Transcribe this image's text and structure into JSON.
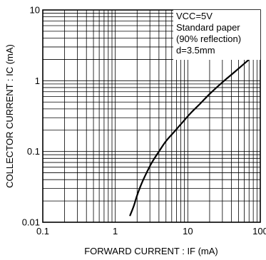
{
  "chart_data": {
    "type": "line",
    "x_scale": "log",
    "y_scale": "log",
    "xlim": [
      0.1,
      100
    ],
    "ylim": [
      0.01,
      10
    ],
    "grid": true,
    "xlabel": "FORWARD  CURRENT : IF (mA)",
    "ylabel": "COLLECTOR  CURRENT : IC (mA)",
    "x_tick_labels": [
      {
        "value": 0.1,
        "label": "0.1"
      },
      {
        "value": 1,
        "label": "1"
      },
      {
        "value": 10,
        "label": "10"
      },
      {
        "value": 100,
        "label": "100"
      }
    ],
    "y_tick_labels": [
      {
        "value": 0.01,
        "label": "0.01"
      },
      {
        "value": 0.1,
        "label": "0.1"
      },
      {
        "value": 1,
        "label": "1"
      },
      {
        "value": 10,
        "label": "10"
      }
    ],
    "annotation_lines": [
      "VCC=5V",
      "Standard paper",
      "(90% reflection)",
      "d=3.5mm"
    ],
    "series": [
      {
        "x": [
          1.6,
          1.8,
          2.0,
          2.3,
          2.7,
          3.2,
          4.0,
          5.0,
          6.5,
          8.5,
          11,
          15,
          20,
          30,
          45,
          70
        ],
        "y": [
          0.0125,
          0.017,
          0.024,
          0.035,
          0.05,
          0.07,
          0.1,
          0.14,
          0.19,
          0.26,
          0.35,
          0.48,
          0.65,
          0.95,
          1.35,
          2.0
        ]
      }
    ]
  }
}
